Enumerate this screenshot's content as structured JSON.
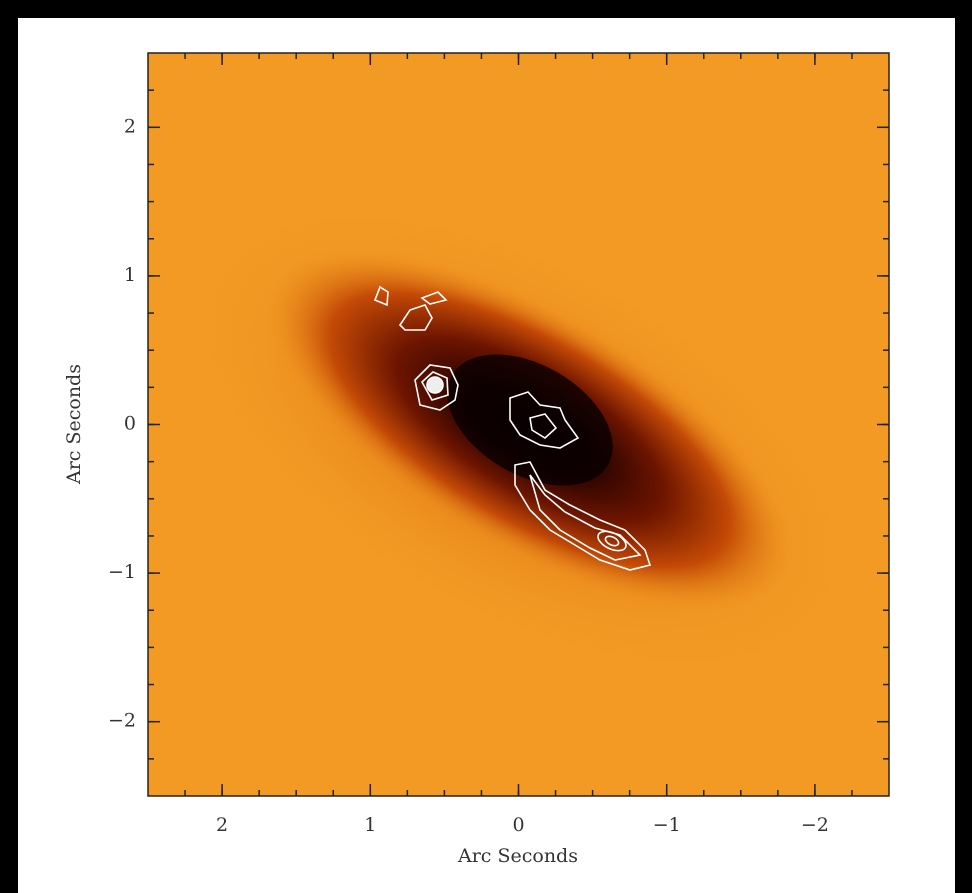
{
  "chart_data": {
    "type": "image",
    "xlabel": "Arc Seconds",
    "ylabel": "Arc Seconds",
    "xlim": [
      2.5,
      -2.5
    ],
    "ylim": [
      -2.5,
      2.5
    ],
    "xticks": [
      2,
      1,
      0,
      {
        "value": -1,
        "label": "−1"
      },
      {
        "value": -2,
        "label": "−2"
      }
    ],
    "yticks": [
      {
        "value": -2,
        "label": "−2"
      },
      {
        "value": -1,
        "label": "−1"
      },
      0,
      1,
      2
    ]
  }
}
